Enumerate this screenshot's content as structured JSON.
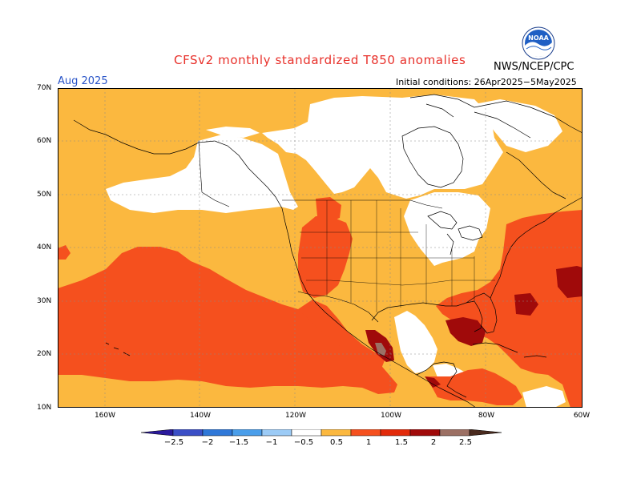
{
  "title": "CFSv2 monthly standardized T850 anomalies",
  "agency": "NWS/NCEP/CPC",
  "logo_icon": "noaa-logo-icon",
  "valid_month": "Aug 2025",
  "initial_conditions": "Initial conditions: 26Apr2025−5May2025",
  "lat_labels": [
    "70N",
    "60N",
    "50N",
    "40N",
    "30N",
    "20N",
    "10N"
  ],
  "lon_labels": [
    "160W",
    "140W",
    "120W",
    "100W",
    "80W",
    "60W"
  ],
  "colorbar": {
    "ticks": [
      "−2.5",
      "−2",
      "−1.5",
      "−1",
      "−0.5",
      "0.5",
      "1",
      "1.5",
      "2",
      "2.5"
    ],
    "colors": [
      "#2a1a9c",
      "#3b4fc6",
      "#2f78d8",
      "#4a9eea",
      "#9ccbf6",
      "#ffffff",
      "#fbb83f",
      "#f5501e",
      "#e22a0a",
      "#a00a0a",
      "#9c7064",
      "#4a2a1e"
    ]
  },
  "anomaly_colors": {
    "neutral": "#ffffff",
    "weak_positive": "#fbb83f",
    "moderate_positive": "#f5501e",
    "strong_positive": "#a00a0a",
    "extreme_positive": "#9c7064"
  }
}
